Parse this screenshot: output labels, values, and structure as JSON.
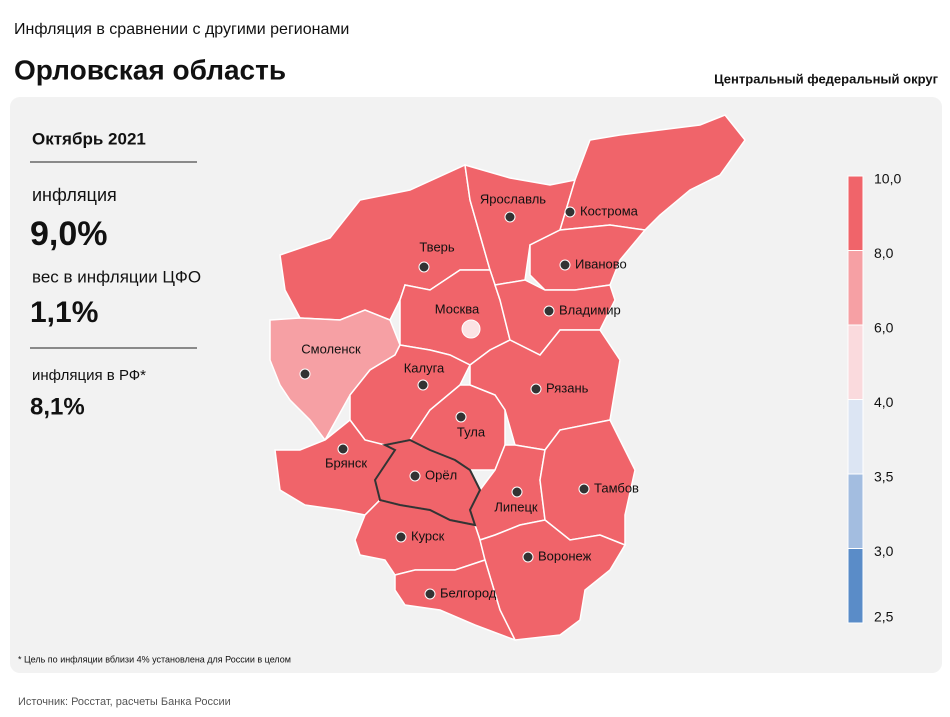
{
  "header": {
    "subtitle": "Инфляция в сравнении с другими регионами",
    "title": "Орловская область",
    "district": "Центральный федеральный округ"
  },
  "panel": {
    "period": "Октябрь 2021",
    "inflation_label": "инфляция",
    "inflation_value": "9,0%",
    "weight_label": "вес в инфляции ЦФО",
    "weight_value": "1,1%",
    "rf_label": "инфляция в РФ*",
    "rf_value": "8,1%"
  },
  "regions": [
    {
      "name": "Тверь",
      "color": "#f0646a"
    },
    {
      "name": "Ярославль",
      "color": "#f0646a"
    },
    {
      "name": "Кострома",
      "color": "#f0646a"
    },
    {
      "name": "Иваново",
      "color": "#f0646a"
    },
    {
      "name": "Москва",
      "color": "#f0646a"
    },
    {
      "name": "Владимир",
      "color": "#f0646a"
    },
    {
      "name": "Смоленск",
      "color": "#f6a0a4"
    },
    {
      "name": "Калуга",
      "color": "#f0646a"
    },
    {
      "name": "Рязань",
      "color": "#f0646a"
    },
    {
      "name": "Тула",
      "color": "#f0646a"
    },
    {
      "name": "Брянск",
      "color": "#f0646a"
    },
    {
      "name": "Орёл",
      "color": "#f0646a"
    },
    {
      "name": "Липецк",
      "color": "#f0646a"
    },
    {
      "name": "Тамбов",
      "color": "#f0646a"
    },
    {
      "name": "Курск",
      "color": "#f0646a"
    },
    {
      "name": "Воронеж",
      "color": "#f0646a"
    },
    {
      "name": "Белгород",
      "color": "#f0646a"
    }
  ],
  "legend": {
    "labels": [
      "10,0",
      "8,0",
      "6,0",
      "4,0",
      "3,5",
      "3,0",
      "2,5"
    ],
    "colors": [
      "#f0646a",
      "#f6a0a4",
      "#fadadd",
      "#dce5f3",
      "#a3bde0",
      "#5a8cc8"
    ]
  },
  "footnote": "* Цель по инфляции вблизи 4% установлена для России в целом",
  "source": "Источник: Росстат, расчеты Банка России"
}
